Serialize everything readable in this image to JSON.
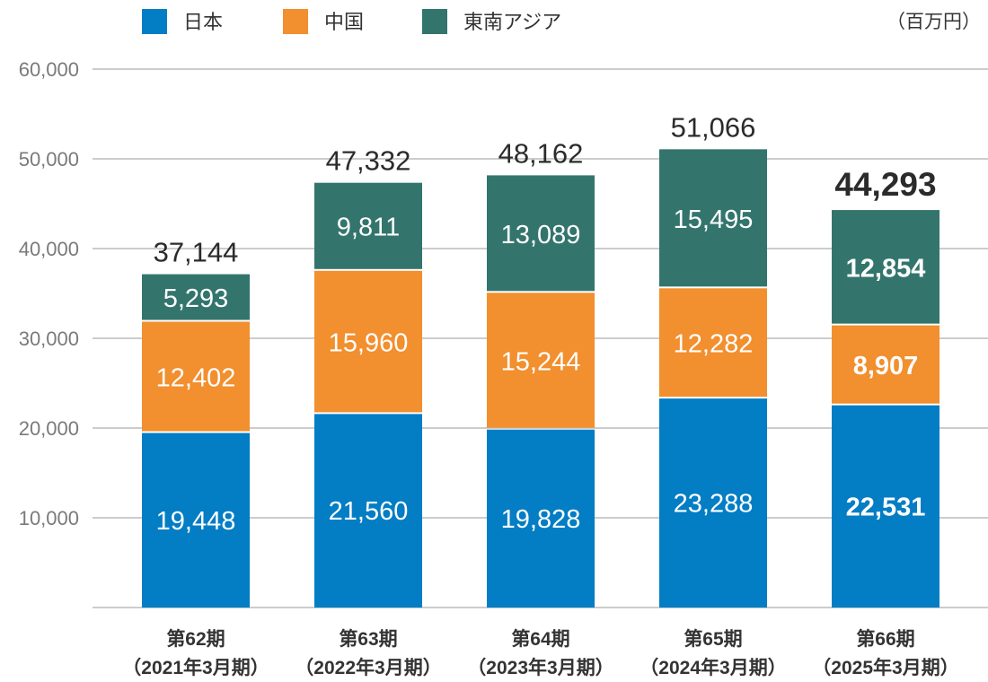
{
  "chart_data": {
    "type": "bar",
    "stacked": true,
    "unit": "（百万円）",
    "categories": [
      {
        "period": "第62期",
        "fiscal": "（2021年3月期）"
      },
      {
        "period": "第63期",
        "fiscal": "（2022年3月期）"
      },
      {
        "period": "第64期",
        "fiscal": "（2023年3月期）"
      },
      {
        "period": "第65期",
        "fiscal": "（2024年3月期）"
      },
      {
        "period": "第66期",
        "fiscal": "（2025年3月期）"
      }
    ],
    "series": [
      {
        "name": "日本",
        "color": "#037dc4",
        "values": [
          19448,
          21560,
          19828,
          23288,
          22531
        ],
        "labels": [
          "19,448",
          "21,560",
          "19,828",
          "23,288",
          "22,531"
        ]
      },
      {
        "name": "中国",
        "color": "#f28f2e",
        "values": [
          12402,
          15960,
          15244,
          12282,
          8907
        ],
        "labels": [
          "12,402",
          "15,960",
          "15,244",
          "12,282",
          "8,907"
        ]
      },
      {
        "name": "東南アジア",
        "color": "#33756d",
        "values": [
          5293,
          9811,
          13089,
          15495,
          12854
        ],
        "labels": [
          "5,293",
          "9,811",
          "13,089",
          "15,495",
          "12,854"
        ]
      }
    ],
    "totals": [
      37144,
      47332,
      48162,
      51066,
      44293
    ],
    "total_labels": [
      "37,144",
      "47,332",
      "48,162",
      "51,066",
      "44,293"
    ],
    "highlight_index": 4,
    "ylim": [
      0,
      60000
    ],
    "yticks": [
      10000,
      20000,
      30000,
      40000,
      50000,
      60000
    ],
    "ytick_labels": [
      "10,000",
      "20,000",
      "30,000",
      "40,000",
      "50,000",
      "60,000"
    ],
    "grid": true,
    "legend_position": "top-left",
    "title": "",
    "xlabel": "",
    "ylabel": ""
  }
}
